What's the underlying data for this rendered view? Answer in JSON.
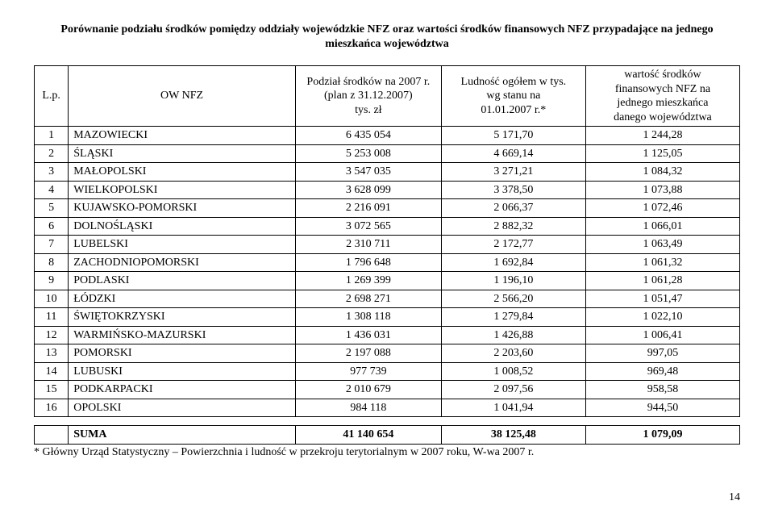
{
  "title_line1": "Porównanie podziału środków pomiędzy oddziały wojewódzkie NFZ oraz wartości środków finansowych NFZ przypadające na jednego",
  "title_line2": "mieszkańca województwa",
  "headers": {
    "lp": "L.p.",
    "ow": "OW NFZ",
    "col1_l1": "Podział środków na 2007 r.",
    "col1_l2": "(plan z 31.12.2007)",
    "col1_l3": "tys. zł",
    "col2_l1": "Ludność ogółem w tys.",
    "col2_l2": "wg stanu na",
    "col2_l3": "01.01.2007 r.*",
    "col3_l1": "wartość środków",
    "col3_l2": "finansowych NFZ na",
    "col3_l3": "jednego mieszkańca",
    "col3_l4": "danego województwa"
  },
  "rows": [
    {
      "lp": "1",
      "name": "MAZOWIECKI",
      "v1": "6 435 054",
      "v2": "5 171,70",
      "v3": "1 244,28"
    },
    {
      "lp": "2",
      "name": "ŚLĄSKI",
      "v1": "5 253 008",
      "v2": "4 669,14",
      "v3": "1 125,05"
    },
    {
      "lp": "3",
      "name": "MAŁOPOLSKI",
      "v1": "3 547 035",
      "v2": "3 271,21",
      "v3": "1 084,32"
    },
    {
      "lp": "4",
      "name": "WIELKOPOLSKI",
      "v1": "3 628 099",
      "v2": "3 378,50",
      "v3": "1 073,88"
    },
    {
      "lp": "5",
      "name": "KUJAWSKO-POMORSKI",
      "v1": "2 216 091",
      "v2": "2 066,37",
      "v3": "1 072,46"
    },
    {
      "lp": "6",
      "name": "DOLNOŚLĄSKI",
      "v1": "3 072 565",
      "v2": "2 882,32",
      "v3": "1 066,01"
    },
    {
      "lp": "7",
      "name": "LUBELSKI",
      "v1": "2 310 711",
      "v2": "2 172,77",
      "v3": "1 063,49"
    },
    {
      "lp": "8",
      "name": "ZACHODNIOPOMORSKI",
      "v1": "1 796 648",
      "v2": "1 692,84",
      "v3": "1 061,32"
    },
    {
      "lp": "9",
      "name": "PODLASKI",
      "v1": "1 269 399",
      "v2": "1 196,10",
      "v3": "1 061,28"
    },
    {
      "lp": "10",
      "name": "ŁÓDZKI",
      "v1": "2 698 271",
      "v2": "2 566,20",
      "v3": "1 051,47"
    },
    {
      "lp": "11",
      "name": "ŚWIĘTOKRZYSKI",
      "v1": "1 308 118",
      "v2": "1 279,84",
      "v3": "1 022,10"
    },
    {
      "lp": "12",
      "name": "WARMIŃSKO-MAZURSKI",
      "v1": "1 436 031",
      "v2": "1 426,88",
      "v3": "1 006,41"
    },
    {
      "lp": "13",
      "name": "POMORSKI",
      "v1": "2 197 088",
      "v2": "2 203,60",
      "v3": "997,05"
    },
    {
      "lp": "14",
      "name": "LUBUSKI",
      "v1": "977 739",
      "v2": "1 008,52",
      "v3": "969,48"
    },
    {
      "lp": "15",
      "name": "PODKARPACKI",
      "v1": "2 010 679",
      "v2": "2 097,56",
      "v3": "958,58"
    },
    {
      "lp": "16",
      "name": "OPOLSKI",
      "v1": "984 118",
      "v2": "1 041,94",
      "v3": "944,50"
    }
  ],
  "sum": {
    "label": "SUMA",
    "v1": "41 140 654",
    "v2": "38 125,48",
    "v3": "1 079,09"
  },
  "footnote": "* Główny Urząd Statystyczny – Powierzchnia i ludność w przekroju terytorialnym w 2007 roku, W-wa 2007 r.",
  "page_number": "14"
}
